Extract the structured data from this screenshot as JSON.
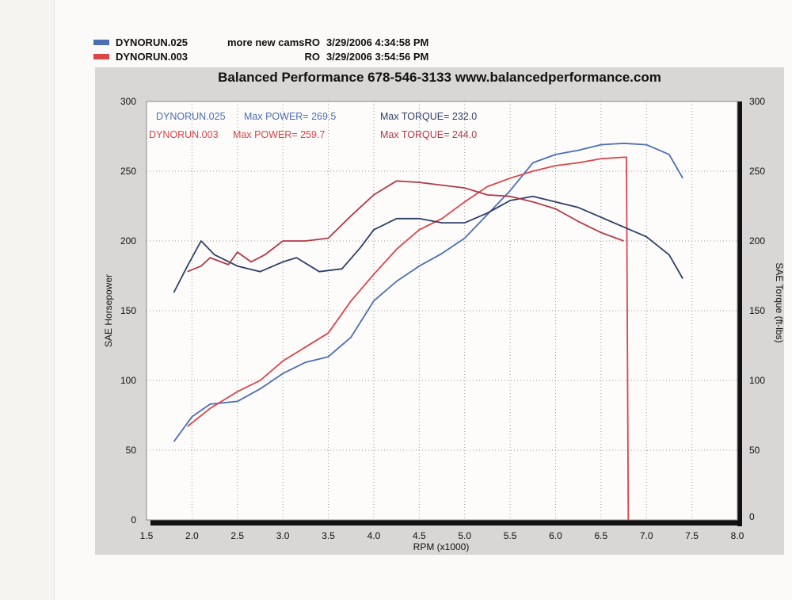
{
  "legend": [
    {
      "run": "DYNORUN.025",
      "description": "more new camsRO",
      "timestamp": "3/29/2006 4:34:58 PM",
      "color": "#4a6fb5"
    },
    {
      "run": "DYNORUN.003",
      "description": "RO",
      "timestamp": "3/29/2006 3:54:56 PM",
      "color": "#d8454a"
    }
  ],
  "chart_data": {
    "type": "line",
    "title": "Balanced Performance 678-546-3133 www.balancedperformance.com",
    "xlabel": "RPM (x1000)",
    "ylabel": "SAE Horsepower",
    "y2label": "SAE Torque (ft-lbs)",
    "xlim": [
      1.5,
      8.0
    ],
    "ylim": [
      0,
      300
    ],
    "y2lim": [
      0,
      300
    ],
    "grid": true,
    "xticks": [
      "1.5",
      "2.0",
      "2.5",
      "3.0",
      "3.5",
      "4.0",
      "4.5",
      "5.0",
      "5.5",
      "6.0",
      "6.5",
      "7.0",
      "7.5",
      "8.0"
    ],
    "yticks": [
      "0",
      "50",
      "100",
      "150",
      "200",
      "250",
      "300"
    ],
    "y2ticks": [
      "0",
      "50",
      "100",
      "150",
      "200",
      "250",
      "300"
    ],
    "annotations": [
      {
        "run": "DYNORUN.025",
        "power": "Max POWER= 269.5",
        "torque": "Max TORQUE= 232.0"
      },
      {
        "run": "DYNORUN.003",
        "power": "Max POWER= 259.7",
        "torque": "Max TORQUE= 244.0"
      }
    ],
    "series": [
      {
        "name": "DYNORUN.025 Power",
        "axis": "left",
        "color": "#4a6fb5",
        "x": [
          1.8,
          2.0,
          2.2,
          2.5,
          2.75,
          3.0,
          3.25,
          3.5,
          3.75,
          4.0,
          4.25,
          4.5,
          4.75,
          5.0,
          5.25,
          5.5,
          5.75,
          6.0,
          6.25,
          6.5,
          6.75,
          7.0,
          7.25,
          7.4
        ],
        "y": [
          56,
          74,
          83,
          85,
          94,
          105,
          113,
          117,
          131,
          157,
          171,
          182,
          191,
          202,
          219,
          236,
          256,
          262,
          265,
          269,
          270,
          269,
          262,
          245
        ]
      },
      {
        "name": "DYNORUN.003 Power",
        "axis": "left",
        "color": "#d8454a",
        "x": [
          1.95,
          2.2,
          2.5,
          2.75,
          3.0,
          3.25,
          3.5,
          3.75,
          4.0,
          4.25,
          4.5,
          4.75,
          5.0,
          5.25,
          5.5,
          5.75,
          6.0,
          6.25,
          6.5,
          6.75,
          6.78,
          6.8
        ],
        "y": [
          67,
          80,
          92,
          100,
          114,
          124,
          134,
          157,
          176,
          194,
          208,
          216,
          228,
          239,
          245,
          250,
          254,
          256,
          259,
          260,
          260,
          0
        ]
      },
      {
        "name": "DYNORUN.025 Torque",
        "axis": "right",
        "color": "#2d3f6b",
        "x": [
          1.8,
          1.95,
          2.1,
          2.25,
          2.5,
          2.75,
          3.0,
          3.15,
          3.4,
          3.65,
          3.85,
          4.0,
          4.25,
          4.5,
          4.75,
          5.0,
          5.25,
          5.5,
          5.75,
          6.0,
          6.25,
          6.5,
          6.75,
          7.0,
          7.25,
          7.4
        ],
        "y": [
          163,
          182,
          200,
          190,
          182,
          178,
          185,
          188,
          178,
          180,
          195,
          208,
          216,
          216,
          213,
          213,
          220,
          229,
          232,
          228,
          224,
          217,
          210,
          203,
          190,
          173
        ]
      },
      {
        "name": "DYNORUN.003 Torque",
        "axis": "right",
        "color": "#b03a4a",
        "x": [
          1.95,
          2.1,
          2.2,
          2.4,
          2.5,
          2.65,
          2.8,
          3.0,
          3.25,
          3.5,
          3.75,
          4.0,
          4.25,
          4.5,
          4.75,
          5.0,
          5.25,
          5.5,
          5.75,
          6.0,
          6.25,
          6.5,
          6.75
        ],
        "y": [
          178,
          182,
          188,
          183,
          192,
          185,
          190,
          200,
          200,
          202,
          218,
          233,
          243,
          242,
          240,
          238,
          233,
          232,
          228,
          223,
          214,
          206,
          200
        ]
      }
    ]
  }
}
